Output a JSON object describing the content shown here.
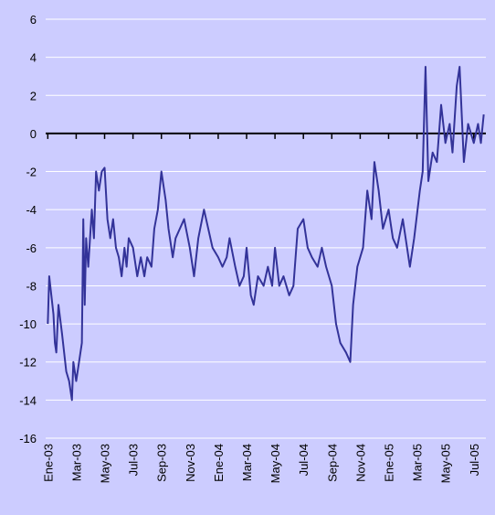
{
  "chart_data": {
    "type": "line",
    "x": [
      0,
      0.1,
      0.25,
      0.4,
      0.5,
      0.6,
      0.75,
      1,
      1.3,
      1.5,
      1.7,
      1.8,
      2,
      2.2,
      2.4,
      2.5,
      2.6,
      2.7,
      2.85,
      3.1,
      3.25,
      3.4,
      3.6,
      3.8,
      4,
      4.2,
      4.4,
      4.6,
      4.8,
      5,
      5.2,
      5.4,
      5.55,
      5.7,
      6,
      6.3,
      6.55,
      6.8,
      7,
      7.3,
      7.5,
      7.75,
      8,
      8.3,
      8.5,
      8.8,
      9,
      9.3,
      9.6,
      10,
      10.3,
      10.6,
      11,
      11.3,
      11.6,
      12,
      12.3,
      12.6,
      12.8,
      13.2,
      13.5,
      13.8,
      14,
      14.3,
      14.5,
      14.8,
      15.2,
      15.5,
      15.8,
      16,
      16.3,
      16.6,
      17,
      17.3,
      17.6,
      18,
      18.3,
      18.6,
      19,
      19.3,
      19.6,
      20,
      20.3,
      20.6,
      21,
      21.3,
      21.5,
      21.8,
      22.2,
      22.5,
      22.8,
      23,
      23.3,
      23.6,
      24,
      24.3,
      24.6,
      25,
      25.5,
      25.8,
      26.2,
      26.4,
      26.6,
      26.8,
      27.1,
      27.4,
      27.7,
      28,
      28.3,
      28.5,
      28.8,
      29,
      29.3,
      29.6,
      30,
      30.3,
      30.5,
      30.7
    ],
    "series": [
      {
        "color": "#333399",
        "values": [
          -10,
          -7.5,
          -8.5,
          -9.5,
          -11,
          -11.5,
          -9,
          -10.5,
          -12.5,
          -13,
          -14,
          -12,
          -13,
          -12,
          -11,
          -4.5,
          -9,
          -5.5,
          -7,
          -4,
          -5.5,
          -2,
          -3,
          -2,
          -1.8,
          -4.5,
          -5.5,
          -4.5,
          -6,
          -6.5,
          -7.5,
          -6,
          -7,
          -5.5,
          -6,
          -7.5,
          -6.5,
          -7.5,
          -6.5,
          -7,
          -5,
          -4,
          -2,
          -3.5,
          -5,
          -6.5,
          -5.5,
          -5,
          -4.5,
          -6,
          -7.5,
          -5.5,
          -4,
          -5,
          -6,
          -6.5,
          -7,
          -6.5,
          -5.5,
          -7,
          -8,
          -7.5,
          -6,
          -8.5,
          -9,
          -7.5,
          -8,
          -7,
          -8,
          -6,
          -8,
          -7.5,
          -8.5,
          -8,
          -5,
          -4.5,
          -6,
          -6.5,
          -7,
          -6,
          -7,
          -8,
          -10,
          -11,
          -11.5,
          -12,
          -9,
          -7,
          -6,
          -3,
          -4.5,
          -1.5,
          -3,
          -5,
          -4,
          -5.5,
          -6,
          -4.5,
          -7,
          -5.5,
          -3,
          -2,
          3.5,
          -2.5,
          -1,
          -1.5,
          1.5,
          -0.5,
          0.5,
          -1,
          2.5,
          3.5,
          -1.5,
          0.5,
          -0.5,
          0.5,
          -0.5,
          1
        ]
      }
    ],
    "xlim": [
      -0.15,
      30.85
    ],
    "xticks": [
      {
        "value": 0,
        "label": "Ene-03"
      },
      {
        "value": 2,
        "label": "Mar-03"
      },
      {
        "value": 4,
        "label": "May-03"
      },
      {
        "value": 6,
        "label": "Jul-03"
      },
      {
        "value": 8,
        "label": "Sep-03"
      },
      {
        "value": 10,
        "label": "Nov-03"
      },
      {
        "value": 12,
        "label": "Ene-04"
      },
      {
        "value": 14,
        "label": "Mar-04"
      },
      {
        "value": 16,
        "label": "May-04"
      },
      {
        "value": 18,
        "label": "Jul-04"
      },
      {
        "value": 20,
        "label": "Sep-04"
      },
      {
        "value": 22,
        "label": "Nov-04"
      },
      {
        "value": 24,
        "label": "Ene-05"
      },
      {
        "value": 26,
        "label": "Mar-05"
      },
      {
        "value": 28,
        "label": "May-05"
      },
      {
        "value": 30,
        "label": "Jul-05"
      }
    ],
    "ylim": [
      -16,
      6
    ],
    "yticks": [
      -16,
      -14,
      -12,
      -10,
      -8,
      -6,
      -4,
      -2,
      0,
      2,
      4,
      6
    ],
    "grid": true
  }
}
